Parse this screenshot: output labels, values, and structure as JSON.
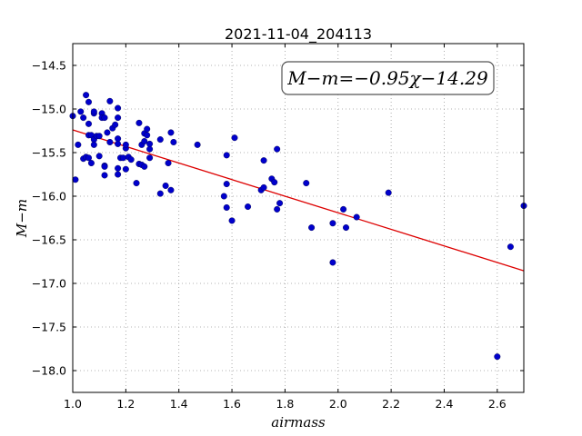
{
  "chart_data": {
    "type": "scatter",
    "title": "2021-11-04_204113",
    "xlabel": "airmass",
    "ylabel": "M−m",
    "xlim": [
      1.0,
      2.7
    ],
    "ylim": [
      -18.25,
      -14.25
    ],
    "xticks": [
      1.0,
      1.2,
      1.4,
      1.6,
      1.8,
      2.0,
      2.2,
      2.4,
      2.6
    ],
    "xtick_labels": [
      "1.0",
      "1.2",
      "1.4",
      "1.6",
      "1.8",
      "2.0",
      "2.2",
      "2.4",
      "2.6"
    ],
    "yticks": [
      -14.5,
      -15.0,
      -15.5,
      -16.0,
      -16.5,
      -17.0,
      -17.5,
      -18.0
    ],
    "ytick_labels": [
      "−14.5",
      "−15.0",
      "−15.5",
      "−16.0",
      "−16.5",
      "−17.0",
      "−17.5",
      "−18.0"
    ],
    "grid": true,
    "annotation": "M−m=−0.95χ−14.29",
    "colors": {
      "points": "#0000cc",
      "fit_line": "#dd0000"
    },
    "fit": {
      "slope": -0.95,
      "intercept": -14.29,
      "x_range": [
        1.0,
        2.7
      ]
    },
    "points": [
      [
        1.0,
        -15.08
      ],
      [
        1.01,
        -15.81
      ],
      [
        1.02,
        -15.41
      ],
      [
        1.03,
        -15.03
      ],
      [
        1.04,
        -15.1
      ],
      [
        1.04,
        -15.57
      ],
      [
        1.05,
        -15.55
      ],
      [
        1.05,
        -14.84
      ],
      [
        1.06,
        -14.92
      ],
      [
        1.06,
        -15.17
      ],
      [
        1.06,
        -15.3
      ],
      [
        1.06,
        -15.56
      ],
      [
        1.07,
        -15.3
      ],
      [
        1.07,
        -15.62
      ],
      [
        1.08,
        -15.05
      ],
      [
        1.08,
        -15.03
      ],
      [
        1.08,
        -15.35
      ],
      [
        1.08,
        -15.41
      ],
      [
        1.09,
        -15.31
      ],
      [
        1.1,
        -15.31
      ],
      [
        1.1,
        -15.54
      ],
      [
        1.11,
        -15.05
      ],
      [
        1.11,
        -15.1
      ],
      [
        1.12,
        -15.1
      ],
      [
        1.12,
        -15.65
      ],
      [
        1.12,
        -15.66
      ],
      [
        1.12,
        -15.76
      ],
      [
        1.13,
        -15.27
      ],
      [
        1.14,
        -15.38
      ],
      [
        1.14,
        -14.91
      ],
      [
        1.15,
        -15.22
      ],
      [
        1.16,
        -15.18
      ],
      [
        1.17,
        -14.99
      ],
      [
        1.17,
        -15.1
      ],
      [
        1.17,
        -15.34
      ],
      [
        1.17,
        -15.4
      ],
      [
        1.17,
        -15.68
      ],
      [
        1.17,
        -15.75
      ],
      [
        1.18,
        -15.56
      ],
      [
        1.19,
        -15.56
      ],
      [
        1.2,
        -15.69
      ],
      [
        1.2,
        -15.45
      ],
      [
        1.2,
        -15.41
      ],
      [
        1.21,
        -15.55
      ],
      [
        1.22,
        -15.58
      ],
      [
        1.24,
        -15.85
      ],
      [
        1.25,
        -15.16
      ],
      [
        1.25,
        -15.63
      ],
      [
        1.26,
        -15.41
      ],
      [
        1.26,
        -15.64
      ],
      [
        1.27,
        -15.37
      ],
      [
        1.27,
        -15.66
      ],
      [
        1.27,
        -15.28
      ],
      [
        1.28,
        -15.23
      ],
      [
        1.28,
        -15.3
      ],
      [
        1.29,
        -15.56
      ],
      [
        1.29,
        -15.46
      ],
      [
        1.29,
        -15.4
      ],
      [
        1.33,
        -15.35
      ],
      [
        1.33,
        -15.97
      ],
      [
        1.35,
        -15.88
      ],
      [
        1.36,
        -15.62
      ],
      [
        1.37,
        -15.27
      ],
      [
        1.37,
        -15.93
      ],
      [
        1.38,
        -15.38
      ],
      [
        1.47,
        -15.41
      ],
      [
        1.57,
        -16.0
      ],
      [
        1.58,
        -16.13
      ],
      [
        1.58,
        -15.86
      ],
      [
        1.58,
        -15.53
      ],
      [
        1.6,
        -16.28
      ],
      [
        1.61,
        -15.33
      ],
      [
        1.66,
        -16.12
      ],
      [
        1.71,
        -15.93
      ],
      [
        1.72,
        -15.9
      ],
      [
        1.72,
        -15.59
      ],
      [
        1.75,
        -15.8
      ],
      [
        1.76,
        -15.84
      ],
      [
        1.77,
        -16.15
      ],
      [
        1.77,
        -15.46
      ],
      [
        1.78,
        -16.08
      ],
      [
        1.88,
        -15.85
      ],
      [
        1.9,
        -16.36
      ],
      [
        1.98,
        -16.31
      ],
      [
        1.98,
        -16.76
      ],
      [
        2.02,
        -16.15
      ],
      [
        2.03,
        -16.36
      ],
      [
        2.07,
        -16.24
      ],
      [
        2.19,
        -15.96
      ],
      [
        2.6,
        -17.84
      ],
      [
        2.65,
        -16.58
      ],
      [
        2.7,
        -16.11
      ]
    ]
  }
}
